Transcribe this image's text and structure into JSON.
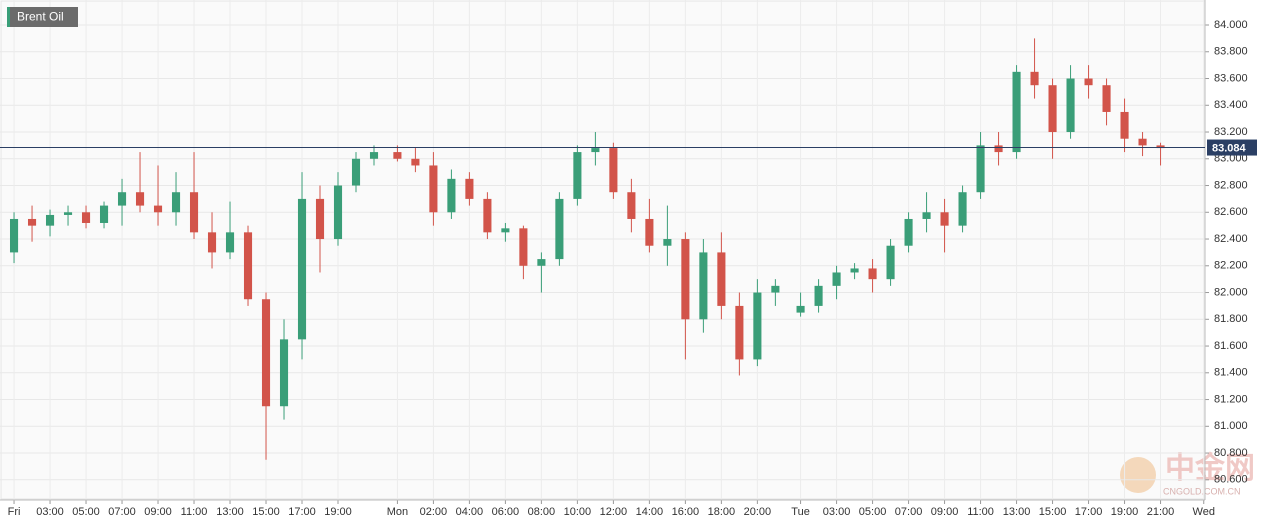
{
  "chart_data": {
    "type": "candlestick",
    "title": "Brent Oil",
    "watermark": [
      "中金网",
      "CNGOLD.COM.CN"
    ],
    "up_color": "#3a9e78",
    "down_color": "#d2544a",
    "last_price": 83.084,
    "last_price_color": "#2b3f64",
    "grid": true,
    "xlim": [
      -0.78,
      66.17
    ],
    "ylim": [
      80.449,
      84.187
    ],
    "yticks": [
      {
        "value": 80.6,
        "label": "80.600"
      },
      {
        "value": 80.8,
        "label": "80.800"
      },
      {
        "value": 81.0,
        "label": "81.000"
      },
      {
        "value": 81.2,
        "label": "81.200"
      },
      {
        "value": 81.4,
        "label": "81.400"
      },
      {
        "value": 81.6,
        "label": "81.600"
      },
      {
        "value": 81.8,
        "label": "81.800"
      },
      {
        "value": 82.0,
        "label": "82.000"
      },
      {
        "value": 82.2,
        "label": "82.200"
      },
      {
        "value": 82.4,
        "label": "82.400"
      },
      {
        "value": 82.6,
        "label": "82.600"
      },
      {
        "value": 82.8,
        "label": "82.800"
      },
      {
        "value": 83.0,
        "label": "83.000"
      },
      {
        "value": 83.2,
        "label": "83.200"
      },
      {
        "value": 83.4,
        "label": "83.400"
      },
      {
        "value": 83.6,
        "label": "83.600"
      },
      {
        "value": 83.8,
        "label": "83.800"
      },
      {
        "value": 84.0,
        "label": "84.000"
      }
    ],
    "xticks": [
      {
        "value": 0,
        "label": "Fri"
      },
      {
        "value": 2,
        "label": "03:00"
      },
      {
        "value": 4,
        "label": "05:00"
      },
      {
        "value": 6,
        "label": "07:00"
      },
      {
        "value": 8,
        "label": "09:00"
      },
      {
        "value": 10,
        "label": "11:00"
      },
      {
        "value": 12,
        "label": "13:00"
      },
      {
        "value": 14,
        "label": "15:00"
      },
      {
        "value": 16,
        "label": "17:00"
      },
      {
        "value": 18,
        "label": "19:00"
      },
      {
        "value": 21.3,
        "label": "Mon"
      },
      {
        "value": 23.3,
        "label": "02:00"
      },
      {
        "value": 25.3,
        "label": "04:00"
      },
      {
        "value": 27.3,
        "label": "06:00"
      },
      {
        "value": 29.3,
        "label": "08:00"
      },
      {
        "value": 31.3,
        "label": "10:00"
      },
      {
        "value": 33.3,
        "label": "12:00"
      },
      {
        "value": 35.3,
        "label": "14:00"
      },
      {
        "value": 37.3,
        "label": "16:00"
      },
      {
        "value": 39.3,
        "label": "18:00"
      },
      {
        "value": 41.3,
        "label": "20:00"
      },
      {
        "value": 43.7,
        "label": "Tue"
      },
      {
        "value": 45.7,
        "label": "03:00"
      },
      {
        "value": 47.7,
        "label": "05:00"
      },
      {
        "value": 49.7,
        "label": "07:00"
      },
      {
        "value": 51.7,
        "label": "09:00"
      },
      {
        "value": 53.7,
        "label": "11:00"
      },
      {
        "value": 55.7,
        "label": "13:00"
      },
      {
        "value": 57.7,
        "label": "15:00"
      },
      {
        "value": 59.7,
        "label": "17:00"
      },
      {
        "value": 61.7,
        "label": "19:00"
      },
      {
        "value": 63.7,
        "label": "21:00"
      },
      {
        "value": 66.1,
        "label": "Wed"
      }
    ],
    "x": [
      0,
      1,
      2,
      3,
      4,
      5,
      6,
      7,
      8,
      9,
      10,
      11,
      12,
      13,
      14,
      15,
      16,
      17,
      18,
      19,
      20,
      21.3,
      22.3,
      23.3,
      24.3,
      25.3,
      26.3,
      27.3,
      28.3,
      29.3,
      30.3,
      31.3,
      32.3,
      33.3,
      34.3,
      35.3,
      36.3,
      37.3,
      38.3,
      39.3,
      40.3,
      41.3,
      42.3,
      43.7,
      44.7,
      45.7,
      46.7,
      47.7,
      48.7,
      49.7,
      50.7,
      51.7,
      52.7,
      53.7,
      54.7,
      55.7,
      56.7,
      57.7,
      58.7,
      59.7,
      60.7,
      61.7,
      62.7,
      63.7
    ],
    "open": [
      82.3,
      82.55,
      82.5,
      82.58,
      82.6,
      82.52,
      82.65,
      82.75,
      82.65,
      82.6,
      82.75,
      82.45,
      82.3,
      82.45,
      81.95,
      81.15,
      81.65,
      82.7,
      82.4,
      82.8,
      83.0,
      83.05,
      83.0,
      82.95,
      82.6,
      82.85,
      82.7,
      82.45,
      82.48,
      82.2,
      82.25,
      82.7,
      83.05,
      83.08,
      82.75,
      82.55,
      82.35,
      82.4,
      81.8,
      82.3,
      81.9,
      81.5,
      82.0,
      81.85,
      81.9,
      82.05,
      82.15,
      82.18,
      82.1,
      82.35,
      82.55,
      82.6,
      82.5,
      82.75,
      83.1,
      83.05,
      83.65,
      83.55,
      83.2,
      83.6,
      83.55,
      83.35,
      83.15,
      83.1
    ],
    "high": [
      82.6,
      82.65,
      82.62,
      82.65,
      82.65,
      82.68,
      82.85,
      83.05,
      82.95,
      82.9,
      83.05,
      82.6,
      82.68,
      82.5,
      82.0,
      81.8,
      82.9,
      82.8,
      82.9,
      83.05,
      83.1,
      83.1,
      83.08,
      83.05,
      82.92,
      82.9,
      82.75,
      82.52,
      82.5,
      82.3,
      82.75,
      83.1,
      83.2,
      83.12,
      82.85,
      82.7,
      82.65,
      82.45,
      82.4,
      82.45,
      82.0,
      82.1,
      82.1,
      82.0,
      82.1,
      82.2,
      82.22,
      82.25,
      82.4,
      82.6,
      82.75,
      82.7,
      82.8,
      83.2,
      83.2,
      83.7,
      83.9,
      83.6,
      83.7,
      83.7,
      83.6,
      83.45,
      83.2,
      83.12
    ],
    "low": [
      82.22,
      82.38,
      82.42,
      82.5,
      82.48,
      82.48,
      82.5,
      82.6,
      82.5,
      82.5,
      82.4,
      82.18,
      82.25,
      81.9,
      80.75,
      81.05,
      81.5,
      82.15,
      82.35,
      82.75,
      82.95,
      82.98,
      82.9,
      82.5,
      82.55,
      82.65,
      82.4,
      82.38,
      82.1,
      82.0,
      82.2,
      82.65,
      82.95,
      82.7,
      82.45,
      82.3,
      82.2,
      81.5,
      81.7,
      81.8,
      81.38,
      81.45,
      81.9,
      81.82,
      81.85,
      81.95,
      82.1,
      82.0,
      82.05,
      82.3,
      82.45,
      82.3,
      82.45,
      82.7,
      82.95,
      83.0,
      83.45,
      83.0,
      83.15,
      83.45,
      83.25,
      83.05,
      83.02,
      82.95
    ],
    "close": [
      82.55,
      82.5,
      82.58,
      82.6,
      82.52,
      82.65,
      82.75,
      82.65,
      82.6,
      82.75,
      82.45,
      82.3,
      82.45,
      81.95,
      81.15,
      81.65,
      82.7,
      82.4,
      82.8,
      83.0,
      83.05,
      83.0,
      82.95,
      82.6,
      82.85,
      82.7,
      82.45,
      82.48,
      82.2,
      82.25,
      82.7,
      83.05,
      83.08,
      82.75,
      82.55,
      82.35,
      82.4,
      81.8,
      82.3,
      81.9,
      81.5,
      82.0,
      82.05,
      81.9,
      82.05,
      82.15,
      82.18,
      82.1,
      82.35,
      82.55,
      82.6,
      82.5,
      82.75,
      83.1,
      83.05,
      83.65,
      83.55,
      83.2,
      83.6,
      83.55,
      83.35,
      83.15,
      83.1,
      83.08
    ]
  }
}
